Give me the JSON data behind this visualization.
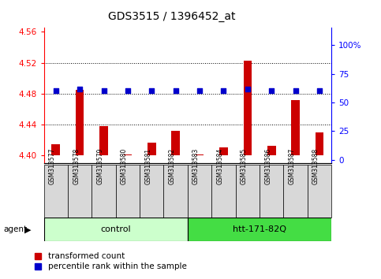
{
  "title": "GDS3515 / 1396452_at",
  "samples": [
    "GSM313577",
    "GSM313578",
    "GSM313579",
    "GSM313580",
    "GSM313581",
    "GSM313582",
    "GSM313583",
    "GSM313584",
    "GSM313585",
    "GSM313586",
    "GSM313587",
    "GSM313588"
  ],
  "red_values": [
    4.415,
    4.485,
    4.438,
    4.401,
    4.417,
    4.432,
    4.401,
    4.41,
    4.523,
    4.413,
    4.472,
    4.43
  ],
  "blue_percentile": [
    60,
    62,
    60,
    60,
    60,
    60,
    60,
    60,
    62,
    60,
    60,
    60
  ],
  "ylim_left": [
    4.39,
    4.565
  ],
  "ylim_right": [
    -3,
    115
  ],
  "yticks_left": [
    4.4,
    4.44,
    4.48,
    4.52,
    4.56
  ],
  "yticks_right": [
    0,
    25,
    50,
    75,
    100
  ],
  "ytick_labels_right": [
    "0",
    "25",
    "50",
    "75",
    "100%"
  ],
  "control_label": "control",
  "treatment_label": "htt-171-82Q",
  "agent_label": "agent",
  "legend_red": "transformed count",
  "legend_blue": "percentile rank within the sample",
  "bar_color": "#cc0000",
  "dot_color": "#0000cc",
  "control_bg": "#ccffcc",
  "treatment_bg": "#44dd44",
  "sample_bg": "#d8d8d8",
  "base_value": 4.4,
  "n_control": 6,
  "n_total": 12
}
